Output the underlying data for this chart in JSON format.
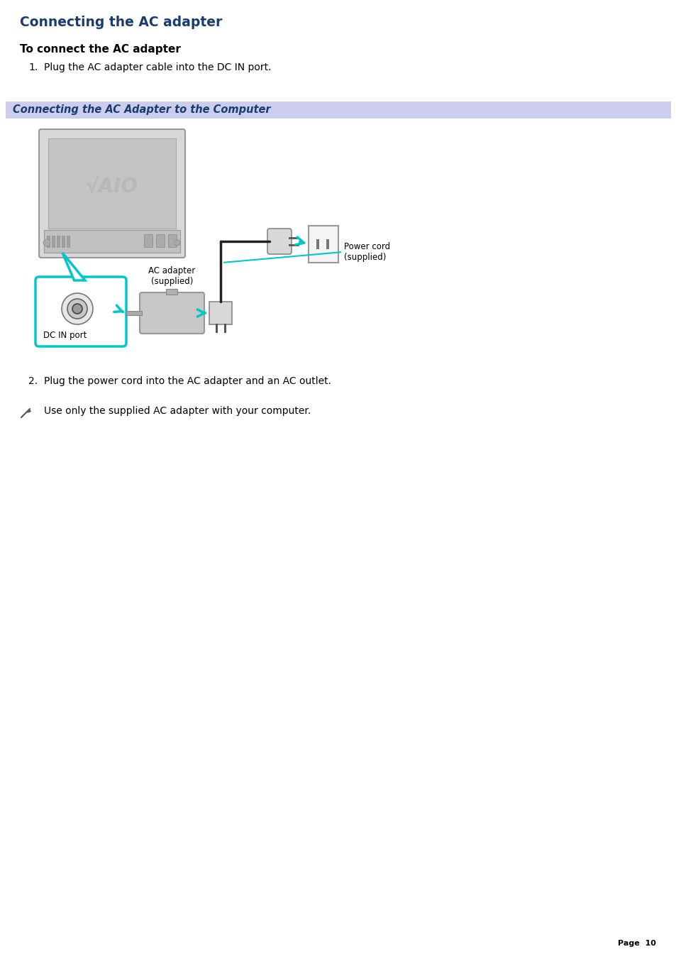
{
  "title": "Connecting the AC adapter",
  "title_color": "#1a3d6e",
  "subtitle": "To connect the AC adapter",
  "step1": "Plug the AC adapter cable into the DC IN port.",
  "step2": "Plug the power cord into the AC adapter and an AC outlet.",
  "note": "Use only the supplied AC adapter with your computer.",
  "diagram_title": "Connecting the AC Adapter to the Computer",
  "diagram_title_color": "#1a3d6e",
  "diagram_bg": "#ccccee",
  "page_label": "Page  10",
  "bg": "#ffffff",
  "label_ac": "AC adapter\n(supplied)",
  "label_power": "Power cord\n(supplied)",
  "label_dc": "DC IN port",
  "cyan": "#00c8c8",
  "gray_dark": "#888888",
  "gray_mid": "#b0b0b0",
  "gray_light": "#d0d0d0",
  "text_color": "#000000"
}
